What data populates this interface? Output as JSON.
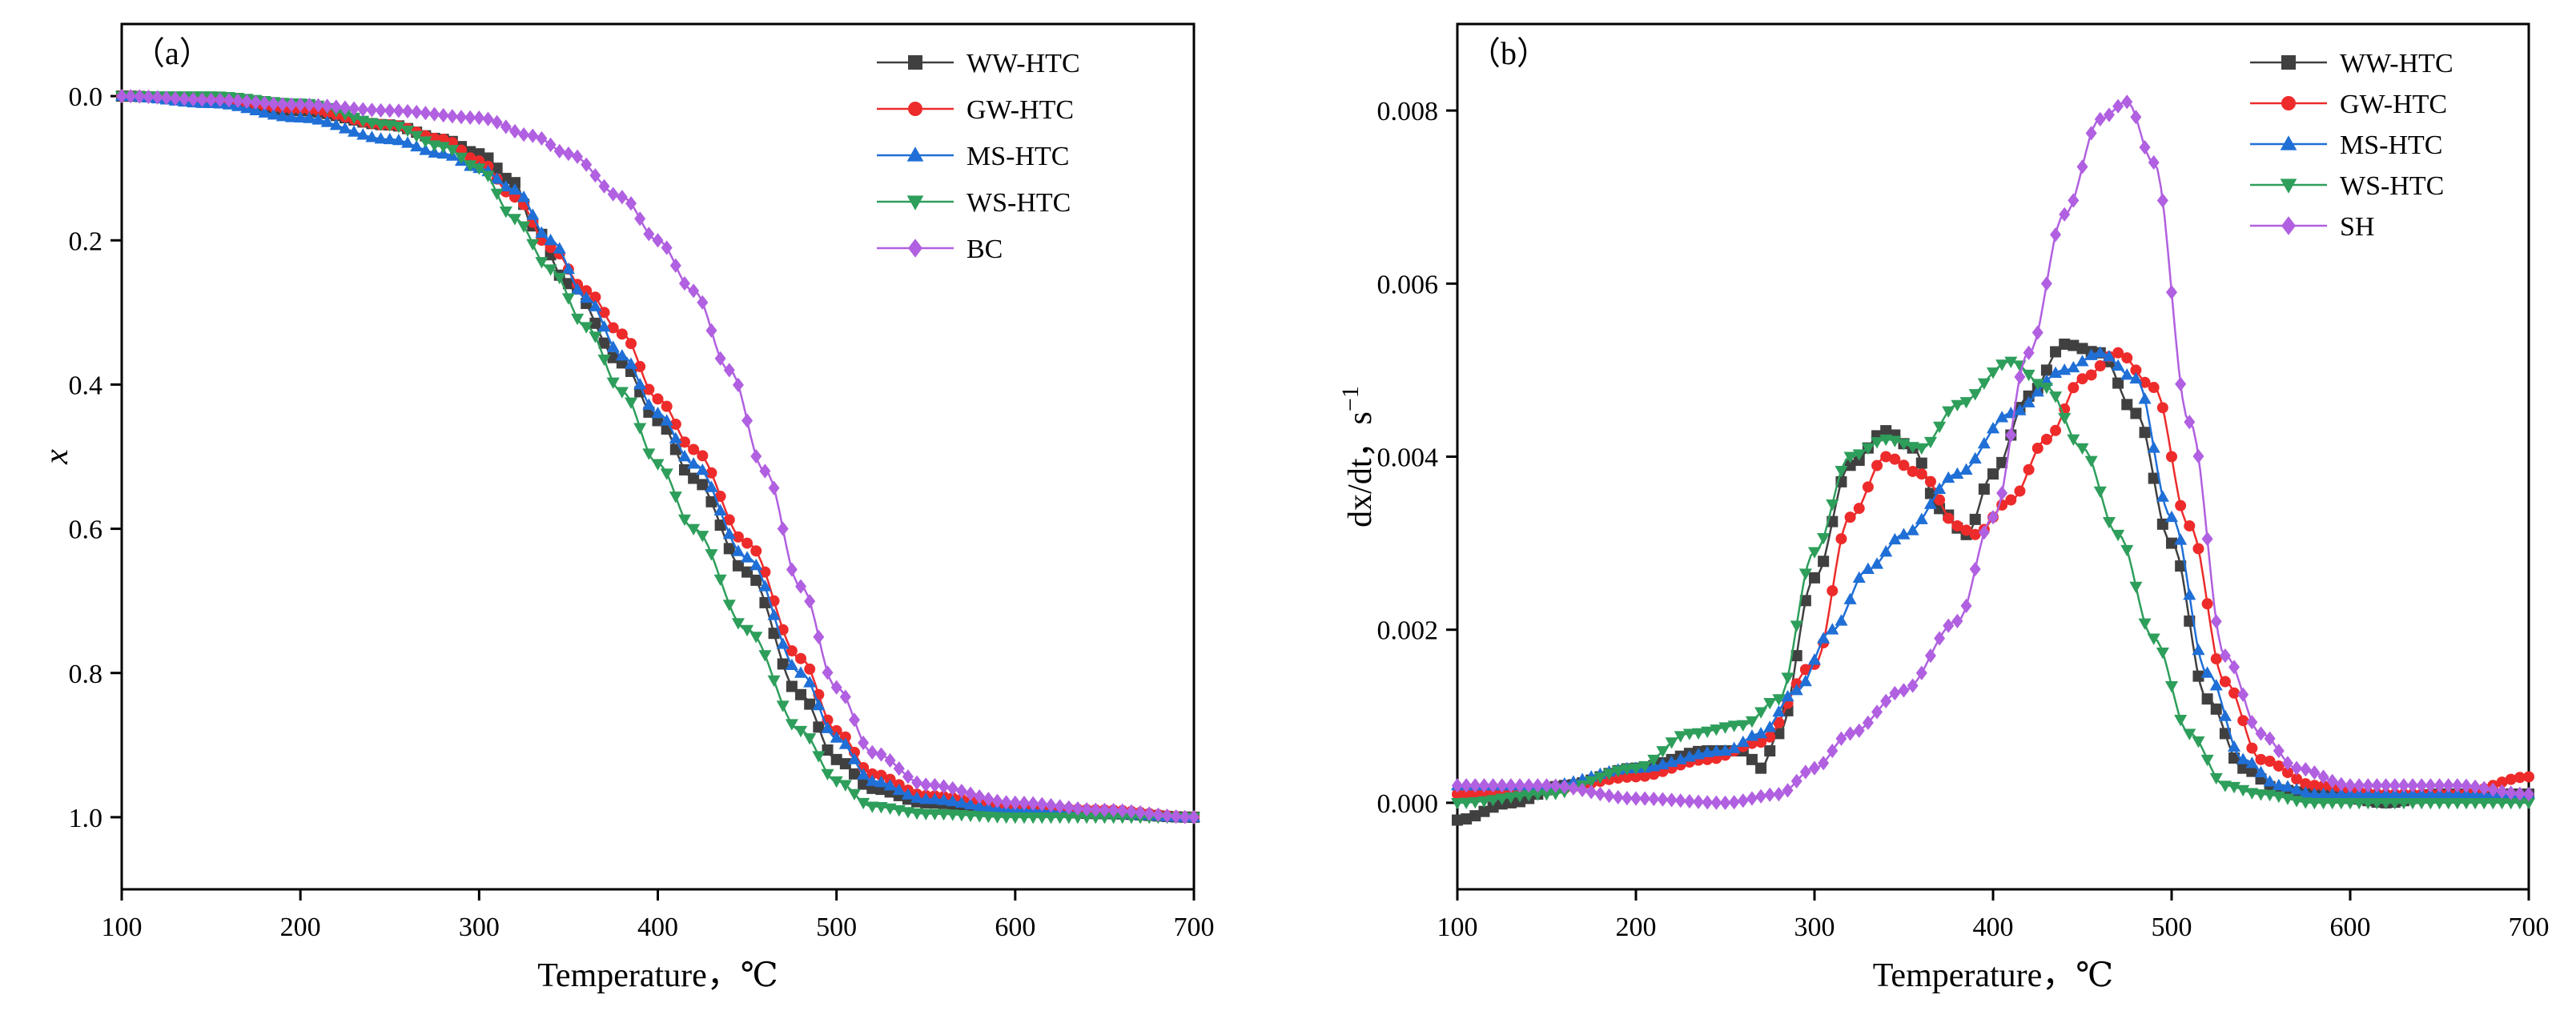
{
  "chart_data": [
    {
      "panel_label": "（a）",
      "type": "line",
      "title": "",
      "xlabel": "Temperature，℃",
      "ylabel": "x",
      "xlim": [
        100,
        700
      ],
      "ylim": [
        1.1,
        -0.1
      ],
      "y_inverted": true,
      "xticks": [
        100,
        200,
        300,
        400,
        500,
        600,
        700
      ],
      "yticks": [
        0.0,
        0.2,
        0.4,
        0.6,
        0.8,
        1.0
      ],
      "ytick_labels": [
        "0.0",
        "0.2",
        "0.4",
        "0.6",
        "0.8",
        "1.0"
      ],
      "grid": false,
      "legend_position": "top-right",
      "series": [
        {
          "name": "WW-HTC",
          "color": "#404040",
          "marker": "square",
          "x": [
            100,
            150,
            200,
            250,
            280,
            300,
            320,
            330,
            350,
            380,
            400,
            420,
            450,
            480,
            500,
            520,
            550,
            600,
            650,
            700
          ],
          "y": [
            0,
            0.005,
            0.02,
            0.04,
            0.06,
            0.08,
            0.12,
            0.18,
            0.26,
            0.37,
            0.45,
            0.53,
            0.66,
            0.83,
            0.92,
            0.96,
            0.98,
            0.99,
            0.995,
            1.0
          ]
        },
        {
          "name": "GW-HTC",
          "color": "#ee2b2b",
          "marker": "circle",
          "x": [
            100,
            150,
            200,
            250,
            280,
            300,
            320,
            340,
            360,
            380,
            400,
            420,
            450,
            480,
            500,
            520,
            550,
            600,
            650,
            700
          ],
          "y": [
            0,
            0.005,
            0.018,
            0.04,
            0.06,
            0.09,
            0.14,
            0.21,
            0.27,
            0.33,
            0.42,
            0.49,
            0.62,
            0.78,
            0.88,
            0.94,
            0.97,
            0.985,
            0.99,
            1.0
          ]
        },
        {
          "name": "MS-HTC",
          "color": "#1f6fd6",
          "marker": "triangle-up",
          "x": [
            100,
            150,
            200,
            250,
            280,
            300,
            320,
            340,
            360,
            380,
            400,
            420,
            450,
            480,
            500,
            520,
            550,
            600,
            650,
            700
          ],
          "y": [
            0,
            0.01,
            0.03,
            0.06,
            0.08,
            0.1,
            0.13,
            0.2,
            0.28,
            0.36,
            0.44,
            0.51,
            0.64,
            0.8,
            0.89,
            0.95,
            0.975,
            0.99,
            0.995,
            1.0
          ]
        },
        {
          "name": "WS-HTC",
          "color": "#2e9e5b",
          "marker": "triangle-down",
          "x": [
            100,
            150,
            200,
            250,
            280,
            300,
            320,
            340,
            360,
            380,
            400,
            420,
            450,
            480,
            500,
            520,
            550,
            600,
            650,
            700
          ],
          "y": [
            0,
            0.0,
            0.01,
            0.04,
            0.07,
            0.1,
            0.17,
            0.24,
            0.32,
            0.41,
            0.51,
            0.6,
            0.74,
            0.88,
            0.95,
            0.985,
            0.995,
            1.0,
            1.0,
            1.0
          ]
        },
        {
          "name": " BC",
          "color": "#b060e0",
          "marker": "diamond",
          "x": [
            100,
            150,
            200,
            250,
            300,
            330,
            350,
            380,
            400,
            420,
            440,
            460,
            480,
            500,
            520,
            550,
            600,
            650,
            700
          ],
          "y": [
            0,
            0.005,
            0.012,
            0.02,
            0.03,
            0.055,
            0.08,
            0.14,
            0.2,
            0.27,
            0.38,
            0.52,
            0.68,
            0.82,
            0.91,
            0.955,
            0.98,
            0.99,
            1.0
          ]
        }
      ]
    },
    {
      "panel_label": "（b）",
      "type": "line",
      "title": "",
      "xlabel": "Temperature，℃",
      "ylabel": "dx/dt，s",
      "ylabel_superscript": "−1",
      "xlim": [
        100,
        700
      ],
      "ylim": [
        -0.001,
        0.009
      ],
      "xticks": [
        100,
        200,
        300,
        400,
        500,
        600,
        700
      ],
      "yticks": [
        0.0,
        0.002,
        0.004,
        0.006,
        0.008
      ],
      "ytick_labels": [
        "0.000",
        "0.002",
        "0.004",
        "0.006",
        "0.008"
      ],
      "grid": false,
      "legend_position": "top-right",
      "series": [
        {
          "name": "WW-HTC",
          "color": "#404040",
          "marker": "square",
          "x": [
            100,
            130,
            160,
            200,
            240,
            260,
            270,
            280,
            300,
            320,
            340,
            355,
            370,
            385,
            400,
            420,
            440,
            460,
            480,
            500,
            520,
            540,
            560,
            580,
            600,
            620,
            650,
            700
          ],
          "y": [
            -0.0002,
            0.0,
            0.0002,
            0.0004,
            0.0006,
            0.0006,
            0.0004,
            0.0008,
            0.0026,
            0.0039,
            0.0043,
            0.0041,
            0.0034,
            0.0031,
            0.0038,
            0.0047,
            0.0053,
            0.0052,
            0.0045,
            0.003,
            0.0012,
            0.0004,
            0.00015,
            0.0001,
            5e-05,
            0.0,
            0.0001,
            0.0001
          ]
        },
        {
          "name": "GW-HTC",
          "color": "#ee2b2b",
          "marker": "circle",
          "x": [
            100,
            150,
            200,
            240,
            270,
            300,
            320,
            340,
            360,
            380,
            390,
            410,
            430,
            450,
            470,
            490,
            510,
            530,
            550,
            580,
            620,
            660,
            700
          ],
          "y": [
            0.0001,
            0.00015,
            0.0003,
            0.0005,
            0.0007,
            0.0016,
            0.0033,
            0.004,
            0.0038,
            0.0032,
            0.0031,
            0.0035,
            0.0042,
            0.0049,
            0.0052,
            0.0048,
            0.0032,
            0.0014,
            0.0005,
            0.0002,
            0.0001,
            0.0001,
            0.0003
          ]
        },
        {
          "name": "MS-HTC",
          "color": "#1f6fd6",
          "marker": "triangle-up",
          "x": [
            100,
            150,
            200,
            250,
            270,
            290,
            310,
            330,
            350,
            380,
            410,
            440,
            460,
            480,
            500,
            520,
            540,
            560,
            580,
            620,
            660,
            700
          ],
          "y": [
            0.0002,
            0.0002,
            0.0004,
            0.0006,
            0.0008,
            0.0013,
            0.002,
            0.0027,
            0.0031,
            0.0038,
            0.0045,
            0.005,
            0.0052,
            0.0049,
            0.0033,
            0.0015,
            0.0005,
            0.0002,
            0.0001,
            0.0001,
            0.0001,
            0.0001
          ]
        },
        {
          "name": "WS-HTC",
          "color": "#2e9e5b",
          "marker": "triangle-down",
          "x": [
            100,
            150,
            200,
            230,
            260,
            280,
            300,
            320,
            340,
            360,
            380,
            410,
            430,
            450,
            470,
            490,
            510,
            530,
            550,
            580,
            620,
            660,
            700
          ],
          "y": [
            0.0,
            0.0001,
            0.0004,
            0.0008,
            0.0009,
            0.0012,
            0.0029,
            0.004,
            0.0042,
            0.0041,
            0.0046,
            0.0051,
            0.0048,
            0.0041,
            0.0031,
            0.0019,
            0.0008,
            0.0002,
            0.0001,
            0.0,
            0.0,
            0.0,
            0.0
          ]
        },
        {
          "name": "SH",
          "color": "#b060e0",
          "marker": "diamond",
          "x": [
            100,
            150,
            200,
            250,
            280,
            300,
            320,
            350,
            380,
            400,
            420,
            440,
            460,
            475,
            490,
            510,
            530,
            550,
            570,
            600,
            630,
            660,
            700
          ],
          "y": [
            0.0002,
            0.0002,
            5e-05,
            0.0,
            0.0001,
            0.0004,
            0.0008,
            0.0013,
            0.0021,
            0.0033,
            0.0052,
            0.0068,
            0.0079,
            0.0081,
            0.0074,
            0.0044,
            0.0017,
            0.0008,
            0.0004,
            0.0002,
            0.0002,
            0.0002,
            0.0001
          ]
        }
      ]
    }
  ]
}
